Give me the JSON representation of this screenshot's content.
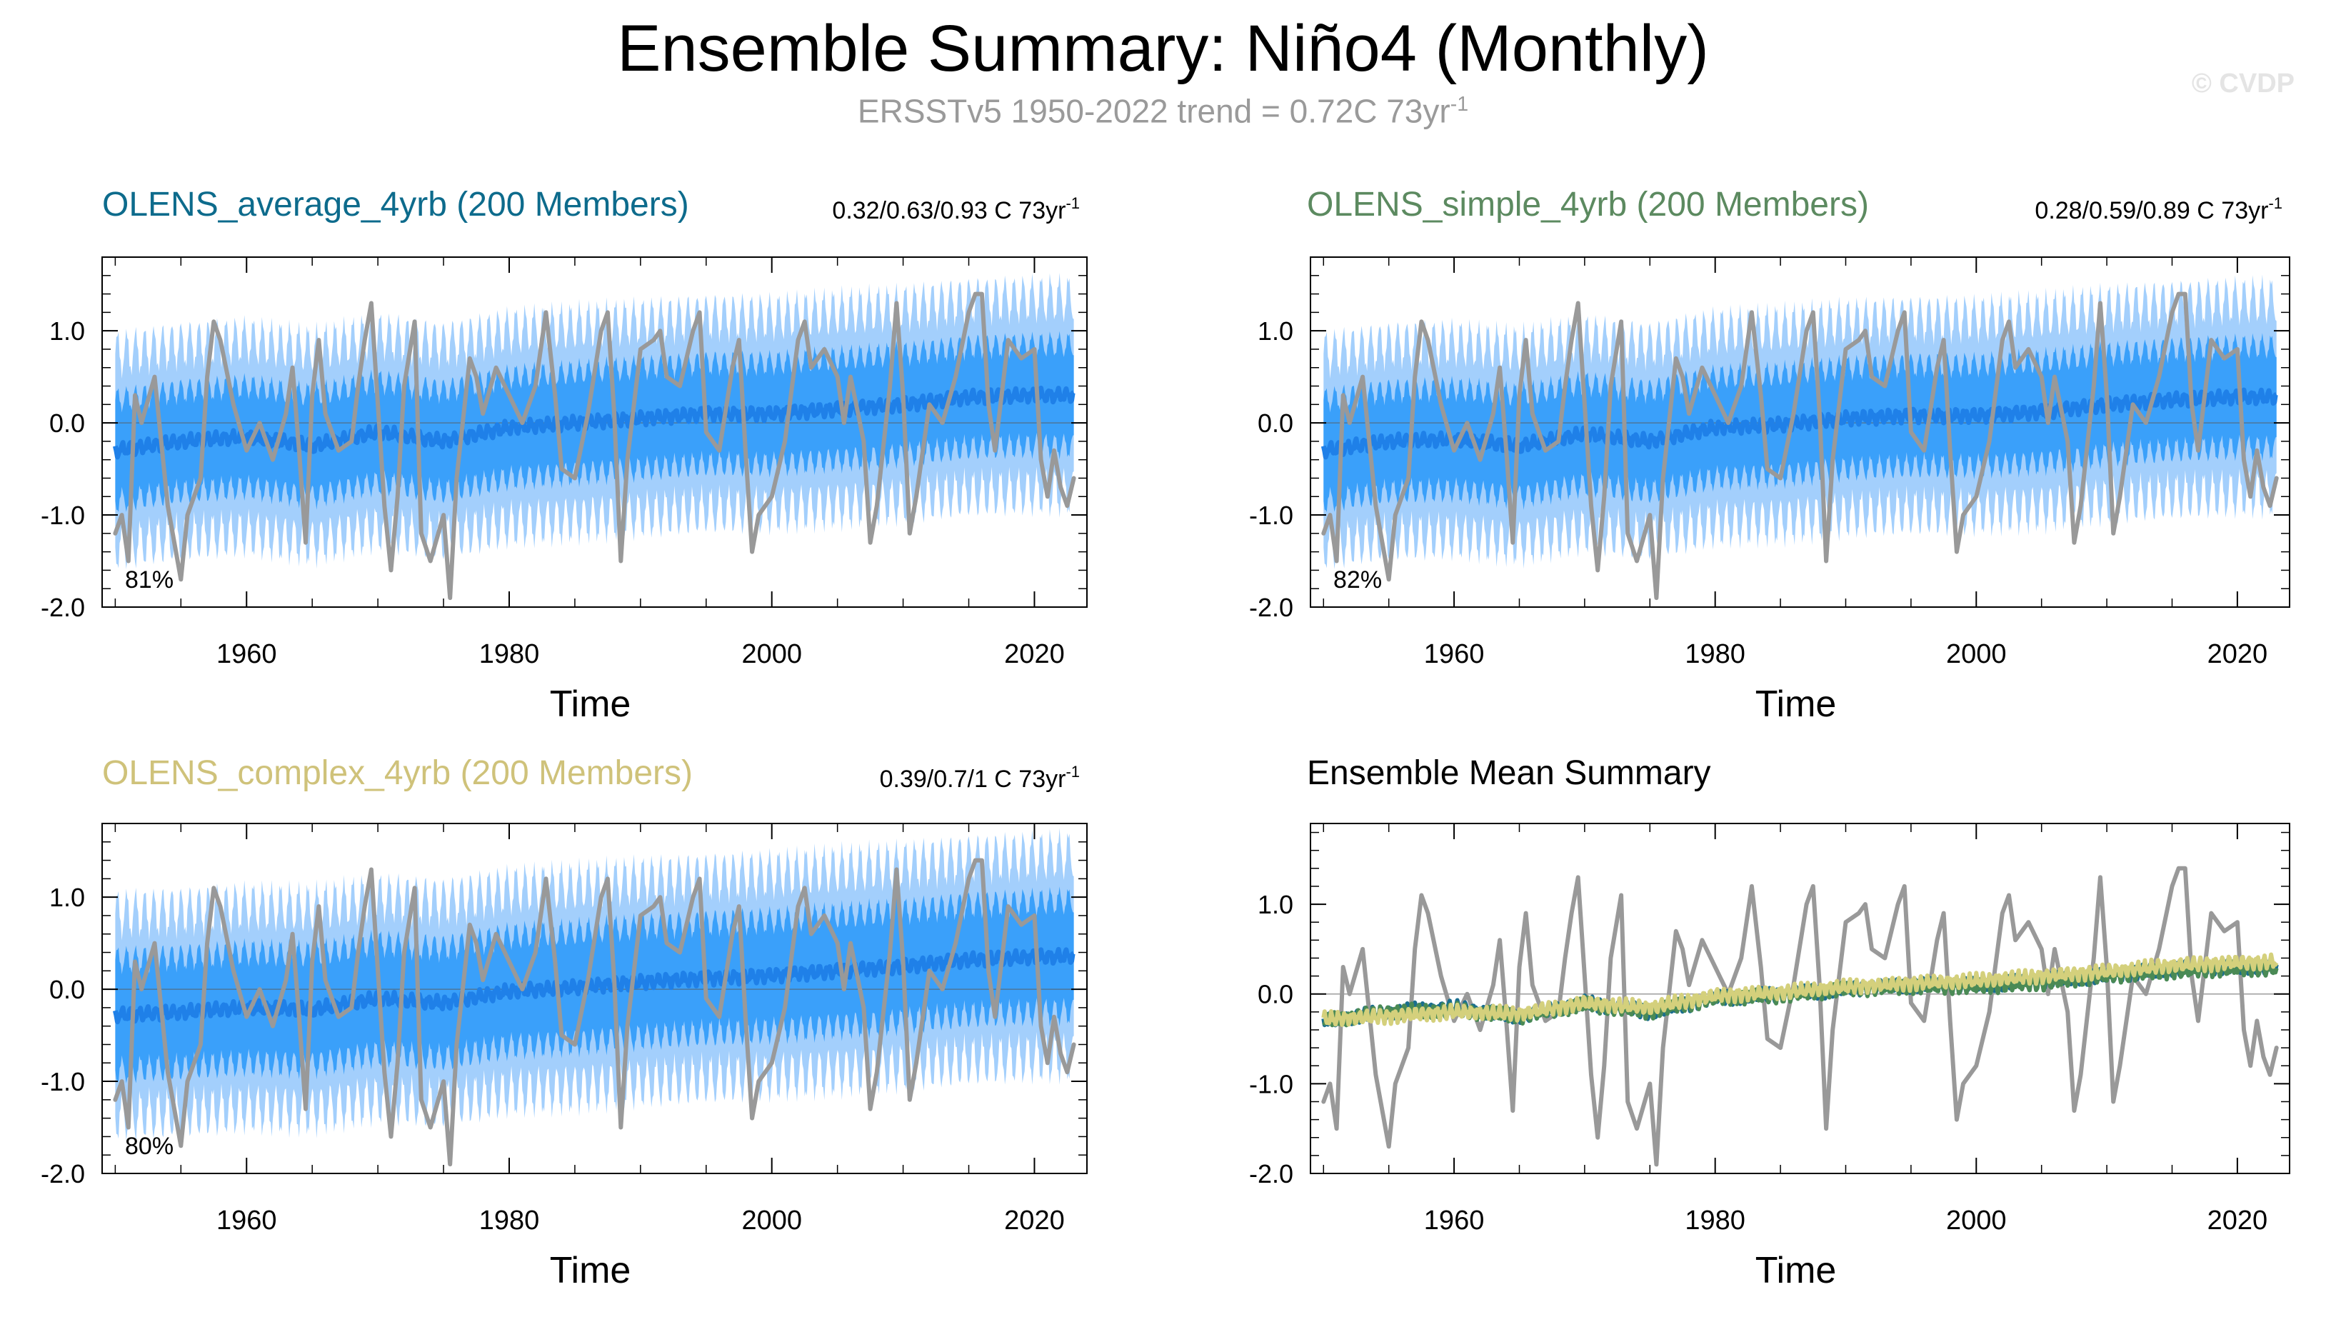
{
  "title": "Ensemble Summary: Niño4 (Monthly)",
  "subtitle": {
    "text": "ERSSTv5 1950-2022 trend = 0.72C 73yr",
    "exponent": "-1"
  },
  "watermark": "© CVDP",
  "colors": {
    "obs": "#999999",
    "band_outer": "#a3cffc",
    "band_inner": "#3aa0fa",
    "ens_mean": "#1f80e8",
    "average_title": "#0d6b8c",
    "simple_title": "#5c8a60",
    "complex_title": "#cfc27a",
    "summary_average": "#1a6e8e",
    "summary_simple": "#4a8a55",
    "summary_complex": "#d4d07c"
  },
  "chart_data": [
    {
      "type": "line",
      "id": "average",
      "title": "OLENS_average_4yrb (200 Members)",
      "trend_label": "0.32/0.63/0.93 C 73yr",
      "trend_exponent": "-1",
      "percent_label": "81%",
      "xlabel": "Time",
      "ylabel": "",
      "xlim": [
        1949,
        2024
      ],
      "ylim": [
        -2.0,
        1.8
      ],
      "xticks": [
        1960,
        1980,
        2000,
        2020
      ],
      "yticks": [
        -2.0,
        -1.0,
        0.0,
        1.0
      ],
      "ytick_labels": [
        "-2.0",
        "-1.0",
        "0.0",
        "1.0"
      ],
      "ens_mean": {
        "x": [
          1950,
          1955,
          1960,
          1965,
          1970,
          1975,
          1980,
          1985,
          1990,
          1995,
          2000,
          2005,
          2010,
          2015,
          2020,
          2023
        ],
        "y": [
          -0.3,
          -0.2,
          -0.15,
          -0.25,
          -0.1,
          -0.2,
          -0.05,
          0.0,
          0.05,
          0.1,
          0.1,
          0.15,
          0.2,
          0.28,
          0.3,
          0.3
        ]
      },
      "band_outer_halfwidth": 1.05,
      "band_inner_halfwidth": 0.55
    },
    {
      "type": "line",
      "id": "simple",
      "title": "OLENS_simple_4yrb (200 Members)",
      "trend_label": "0.28/0.59/0.89 C 73yr",
      "trend_exponent": "-1",
      "percent_label": "82%",
      "xlabel": "Time",
      "ylabel": "",
      "xlim": [
        1949,
        2024
      ],
      "ylim": [
        -2.0,
        1.8
      ],
      "xticks": [
        1960,
        1980,
        2000,
        2020
      ],
      "yticks": [
        -2.0,
        -1.0,
        0.0,
        1.0
      ],
      "ytick_labels": [
        "-2.0",
        "-1.0",
        "0.0",
        "1.0"
      ],
      "ens_mean": {
        "x": [
          1950,
          1955,
          1960,
          1965,
          1970,
          1975,
          1980,
          1985,
          1990,
          1995,
          2000,
          2005,
          2010,
          2015,
          2020,
          2023
        ],
        "y": [
          -0.3,
          -0.2,
          -0.18,
          -0.25,
          -0.12,
          -0.2,
          -0.05,
          -0.02,
          0.05,
          0.08,
          0.08,
          0.12,
          0.2,
          0.25,
          0.28,
          0.28
        ]
      },
      "band_outer_halfwidth": 1.05,
      "band_inner_halfwidth": 0.55
    },
    {
      "type": "line",
      "id": "complex",
      "title": "OLENS_complex_4yrb (200 Members)",
      "trend_label": "0.39/0.7/1 C 73yr",
      "trend_exponent": "-1",
      "percent_label": "80%",
      "xlabel": "Time",
      "ylabel": "",
      "xlim": [
        1949,
        2024
      ],
      "ylim": [
        -2.0,
        1.8
      ],
      "xticks": [
        1960,
        1980,
        2000,
        2020
      ],
      "yticks": [
        -2.0,
        -1.0,
        0.0,
        1.0
      ],
      "ytick_labels": [
        "-2.0",
        "-1.0",
        "0.0",
        "1.0"
      ],
      "ens_mean": {
        "x": [
          1950,
          1955,
          1960,
          1965,
          1970,
          1975,
          1980,
          1985,
          1990,
          1995,
          2000,
          2005,
          2010,
          2015,
          2020,
          2023
        ],
        "y": [
          -0.28,
          -0.25,
          -0.2,
          -0.22,
          -0.1,
          -0.15,
          -0.02,
          0.02,
          0.08,
          0.12,
          0.15,
          0.2,
          0.25,
          0.32,
          0.35,
          0.36
        ]
      },
      "band_outer_halfwidth": 1.1,
      "band_inner_halfwidth": 0.6
    },
    {
      "type": "line",
      "id": "summary",
      "title": "Ensemble Mean Summary",
      "xlabel": "Time",
      "ylabel": "",
      "xlim": [
        1949,
        2024
      ],
      "ylim": [
        -2.0,
        1.9
      ],
      "xticks": [
        1960,
        1980,
        2000,
        2020
      ],
      "yticks": [
        -2.0,
        -1.0,
        0.0,
        1.0
      ],
      "ytick_labels": [
        "-2.0",
        "-1.0",
        "0.0",
        "1.0"
      ],
      "series": [
        {
          "name": "OLENS_average_4yrb",
          "color_key": "summary_average"
        },
        {
          "name": "OLENS_simple_4yrb",
          "color_key": "summary_simple"
        },
        {
          "name": "OLENS_complex_4yrb",
          "color_key": "summary_complex"
        }
      ]
    }
  ],
  "observations": {
    "name": "ERSSTv5",
    "x": [
      1950,
      1950.5,
      1951,
      1951.5,
      1952,
      1953,
      1954,
      1955,
      1955.5,
      1956.5,
      1957,
      1957.5,
      1958,
      1959,
      1960,
      1961,
      1962,
      1963,
      1963.5,
      1964,
      1964.5,
      1965,
      1965.5,
      1966,
      1967,
      1968,
      1968.5,
      1969,
      1969.5,
      1970,
      1970.5,
      1971,
      1971.5,
      1972,
      1972.8,
      1973.3,
      1974,
      1975,
      1975.5,
      1976,
      1977,
      1977.5,
      1978,
      1979,
      1980,
      1981,
      1982,
      1982.8,
      1983.5,
      1984,
      1985,
      1986,
      1987,
      1987.5,
      1988,
      1988.5,
      1989,
      1990,
      1991,
      1991.5,
      1992,
      1993,
      1994,
      1994.5,
      1995,
      1996,
      1997,
      1997.5,
      1998,
      1998.5,
      1999,
      2000,
      2001,
      2002,
      2002.5,
      2003,
      2004,
      2005,
      2005.5,
      2006,
      2007,
      2007.5,
      2008,
      2009,
      2009.5,
      2010,
      2010.5,
      2011,
      2012,
      2013,
      2014,
      2015,
      2015.5,
      2016,
      2016.5,
      2017,
      2018,
      2019,
      2020,
      2020.5,
      2021,
      2021.5,
      2022,
      2022.5,
      2023
    ],
    "y": [
      -1.2,
      -1.0,
      -1.5,
      0.3,
      0.0,
      0.5,
      -0.9,
      -1.7,
      -1.0,
      -0.6,
      0.5,
      1.1,
      0.9,
      0.2,
      -0.3,
      0.0,
      -0.4,
      0.1,
      0.6,
      -0.3,
      -1.3,
      0.3,
      0.9,
      0.1,
      -0.3,
      -0.2,
      0.4,
      0.9,
      1.3,
      0.2,
      -0.9,
      -1.6,
      -0.8,
      0.4,
      1.1,
      -1.2,
      -1.5,
      -1.0,
      -1.9,
      -0.6,
      0.7,
      0.5,
      0.1,
      0.6,
      0.3,
      0.0,
      0.4,
      1.2,
      0.3,
      -0.5,
      -0.6,
      0.1,
      1.0,
      1.2,
      0.1,
      -1.5,
      -0.4,
      0.8,
      0.9,
      1.0,
      0.5,
      0.4,
      1.0,
      1.2,
      -0.1,
      -0.3,
      0.6,
      0.9,
      -0.3,
      -1.4,
      -1.0,
      -0.8,
      -0.2,
      0.9,
      1.1,
      0.6,
      0.8,
      0.5,
      0.0,
      0.5,
      -0.2,
      -1.3,
      -0.9,
      0.4,
      1.3,
      0.3,
      -1.2,
      -0.8,
      0.2,
      0.0,
      0.5,
      1.2,
      1.4,
      1.4,
      0.2,
      -0.3,
      0.9,
      0.7,
      0.8,
      -0.4,
      -0.8,
      -0.3,
      -0.7,
      -0.9,
      -0.6
    ]
  }
}
